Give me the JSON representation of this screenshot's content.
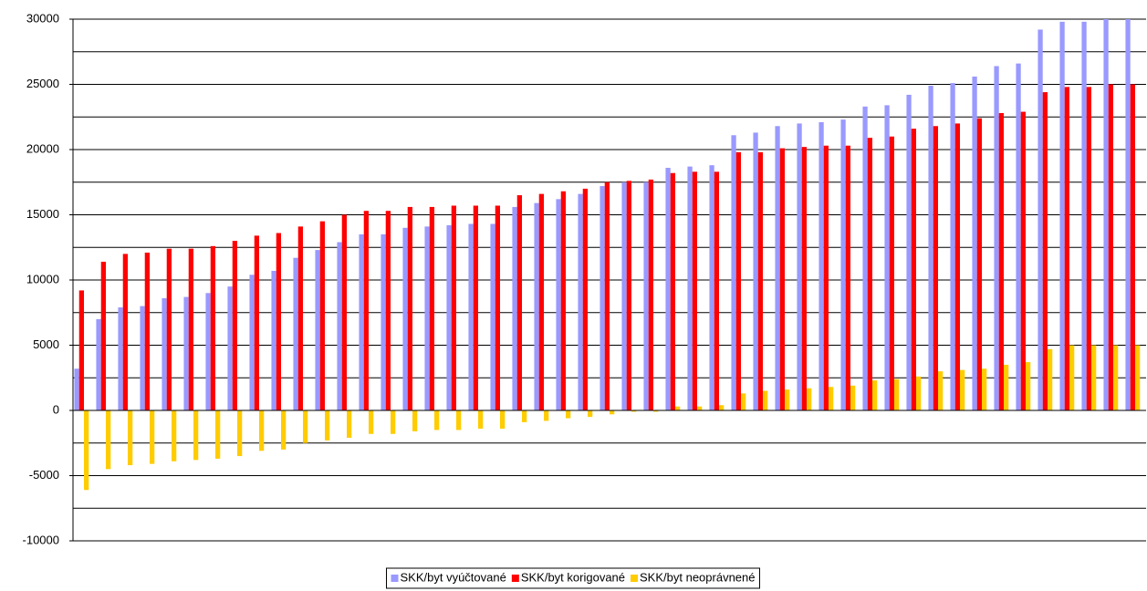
{
  "chart_data": {
    "type": "bar",
    "categories": [
      null,
      null,
      null,
      null,
      null,
      null,
      null,
      null,
      null,
      null,
      null,
      null,
      null,
      null,
      null,
      null,
      null,
      null,
      null,
      null,
      null,
      null,
      null,
      null,
      null,
      null,
      null,
      null,
      null,
      null,
      null,
      null,
      null,
      null,
      null,
      null,
      null,
      null,
      null,
      null,
      null,
      null,
      null,
      null,
      null,
      null,
      null,
      null,
      null
    ],
    "series": [
      {
        "name": "SKK/byt vyúčtované",
        "color": "#9999ff",
        "values": [
          3200,
          7000,
          7900,
          8000,
          8600,
          8700,
          9000,
          9500,
          10400,
          10700,
          11700,
          12300,
          12900,
          13500,
          13500,
          14000,
          14100,
          14200,
          14300,
          14300,
          15600,
          15900,
          16200,
          16600,
          17200,
          17500,
          17500,
          18600,
          18700,
          18800,
          21100,
          21300,
          21800,
          22000,
          22100,
          22300,
          23300,
          23400,
          24200,
          24900,
          25100,
          25600,
          26400,
          26600,
          29200,
          29800,
          29800,
          30000,
          30000
        ]
      },
      {
        "name": "SKK/byt korigované",
        "color": "#ff0000",
        "values": [
          9200,
          11400,
          12000,
          12100,
          12400,
          12400,
          12600,
          13000,
          13400,
          13600,
          14100,
          14500,
          15000,
          15300,
          15300,
          15600,
          15600,
          15700,
          15700,
          15700,
          16500,
          16600,
          16800,
          17000,
          17500,
          17600,
          17700,
          18200,
          18300,
          18300,
          19800,
          19800,
          20100,
          20200,
          20300,
          20300,
          20900,
          21000,
          21600,
          21800,
          22000,
          22400,
          22800,
          22900,
          24400,
          24800,
          24800,
          25000,
          25000
        ]
      },
      {
        "name": "SKK/byt neoprávnené",
        "color": "#ffcc00",
        "values": [
          -6100,
          -4500,
          -4200,
          -4100,
          -3900,
          -3800,
          -3700,
          -3500,
          -3100,
          -3000,
          -2500,
          -2300,
          -2100,
          -1800,
          -1800,
          -1600,
          -1500,
          -1500,
          -1400,
          -1400,
          -900,
          -800,
          -600,
          -500,
          -300,
          -100,
          -100,
          300,
          300,
          400,
          1300,
          1500,
          1600,
          1700,
          1800,
          1900,
          2300,
          2400,
          2600,
          3000,
          3100,
          3200,
          3500,
          3700,
          4700,
          5000,
          5000,
          5000,
          5000
        ]
      }
    ],
    "ylim": [
      -10000,
      30000
    ],
    "yticks": [
      -10000,
      -5000,
      0,
      5000,
      10000,
      15000,
      20000,
      25000,
      30000
    ],
    "ygrid": [
      -10000,
      -7500,
      -5000,
      -2500,
      0,
      2500,
      5000,
      7500,
      10000,
      12500,
      15000,
      17500,
      20000,
      22500,
      25000,
      27500,
      30000
    ],
    "grid": true,
    "legend": "bottom"
  }
}
